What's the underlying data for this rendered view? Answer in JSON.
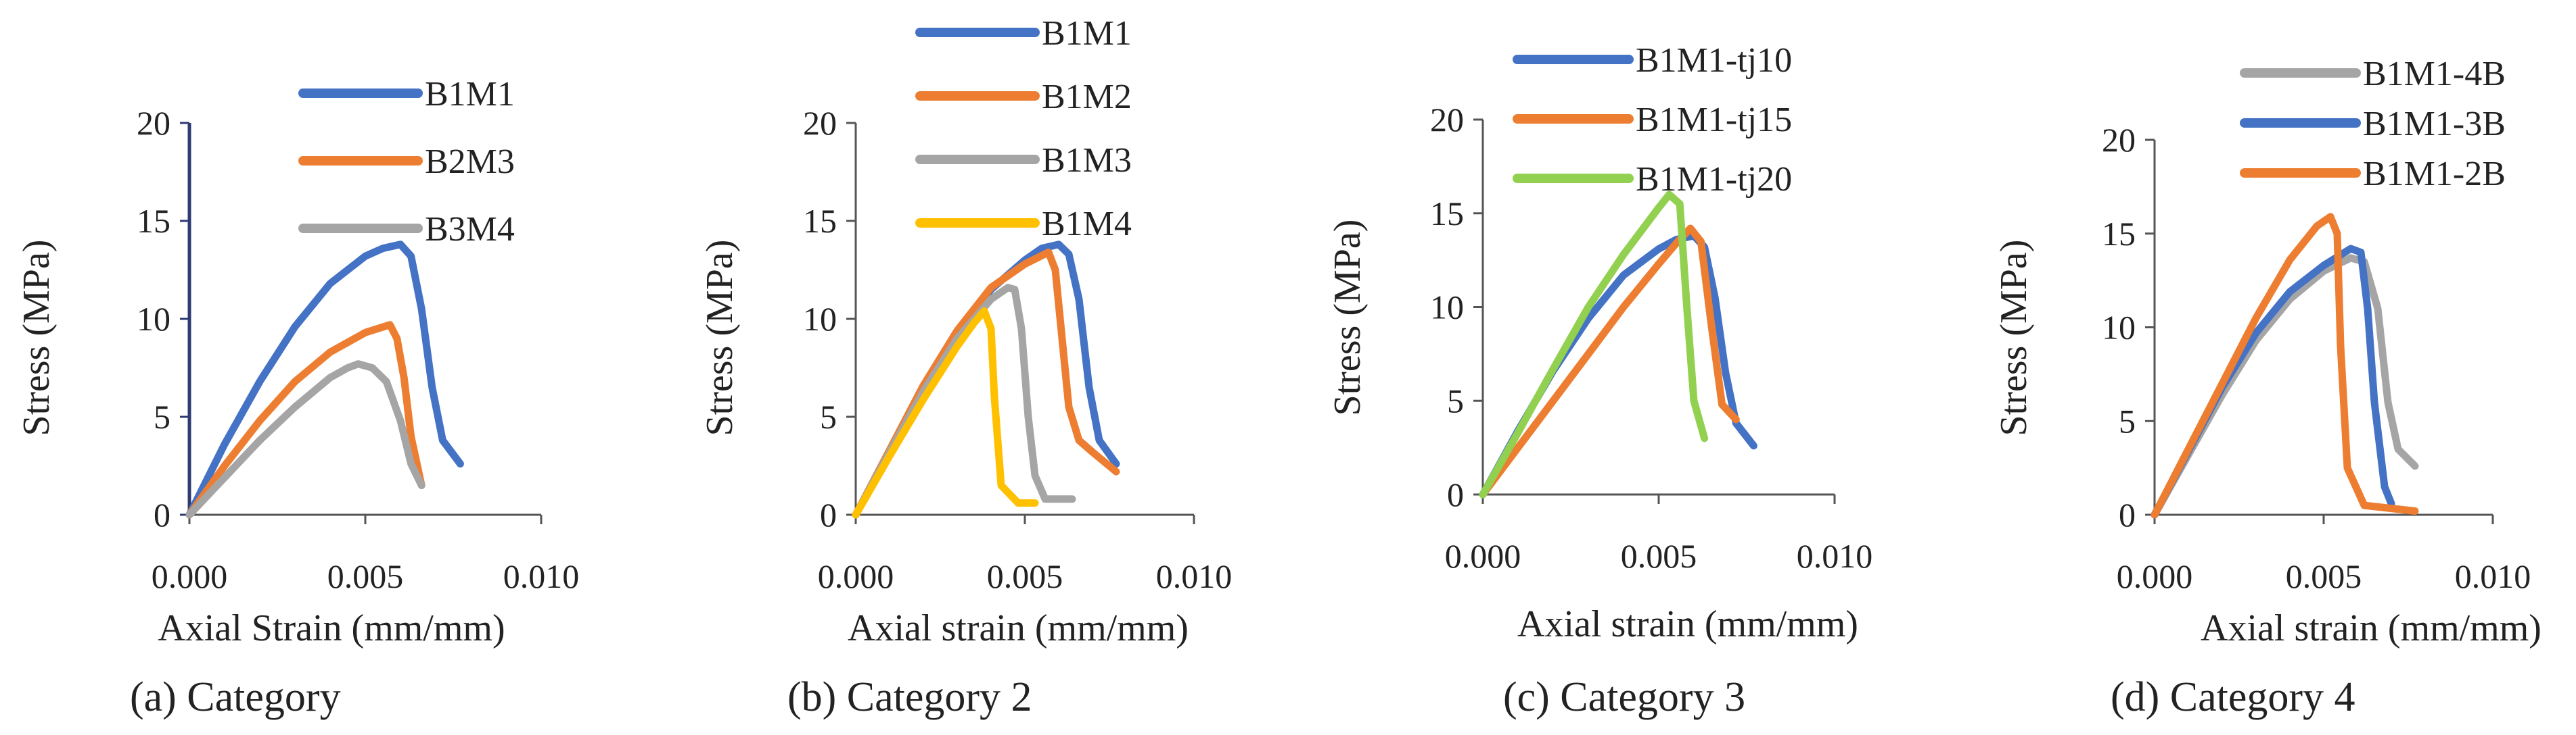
{
  "colors": {
    "blue": "#4472C4",
    "orange": "#ED7D31",
    "gray": "#A5A5A5",
    "yellow": "#FFC000",
    "green": "#92D050",
    "axis": "#2E3B73"
  },
  "chart_data": [
    {
      "type": "line",
      "caption": "(a) Category",
      "xlabel": "Axial Strain (mm/mm)",
      "ylabel": "Stress  (MPa)",
      "xlim": [
        0,
        0.01
      ],
      "ylim": [
        0,
        20
      ],
      "xticks": [
        0,
        0.005,
        0.01
      ],
      "xtick_labels": [
        "0.000",
        "0.005",
        "0.010"
      ],
      "yticks": [
        0,
        5,
        10,
        15,
        20
      ],
      "ytick_labels": [
        "0",
        "5",
        "10",
        "15",
        "20"
      ],
      "legend_position": "top-center",
      "series": [
        {
          "name": "B1M1",
          "color": "blue",
          "x": [
            0,
            0.001,
            0.002,
            0.003,
            0.004,
            0.005,
            0.0055,
            0.006,
            0.0063,
            0.0066,
            0.0069,
            0.0072,
            0.0077
          ],
          "y": [
            0,
            3.6,
            6.8,
            9.6,
            11.8,
            13.2,
            13.6,
            13.8,
            13.2,
            10.5,
            6.5,
            3.8,
            2.6
          ]
        },
        {
          "name": "B2M3",
          "color": "orange",
          "x": [
            0,
            0.001,
            0.002,
            0.003,
            0.004,
            0.005,
            0.0057,
            0.0059,
            0.0061,
            0.0063,
            0.0066
          ],
          "y": [
            0,
            2.5,
            4.8,
            6.8,
            8.3,
            9.3,
            9.7,
            9.0,
            7.0,
            4.0,
            1.5
          ]
        },
        {
          "name": "B3M4",
          "color": "gray",
          "x": [
            0,
            0.001,
            0.002,
            0.003,
            0.004,
            0.0045,
            0.0048,
            0.0052,
            0.0056,
            0.006,
            0.0063,
            0.0066
          ],
          "y": [
            0,
            1.9,
            3.8,
            5.5,
            7.0,
            7.5,
            7.7,
            7.5,
            6.8,
            4.8,
            2.6,
            1.5
          ]
        }
      ]
    },
    {
      "type": "line",
      "caption": "(b) Category 2",
      "xlabel": "Axial strain (mm/mm)",
      "ylabel": "Stress  (MPa)",
      "xlim": [
        0,
        0.01
      ],
      "ylim": [
        0,
        20
      ],
      "xticks": [
        0,
        0.005,
        0.01
      ],
      "xtick_labels": [
        "0.000",
        "0.005",
        "0.010"
      ],
      "yticks": [
        0,
        5,
        10,
        15,
        20
      ],
      "ytick_labels": [
        "0",
        "5",
        "10",
        "15",
        "20"
      ],
      "legend_position": "top-right",
      "series": [
        {
          "name": "B1M1",
          "color": "blue",
          "x": [
            0,
            0.001,
            0.002,
            0.003,
            0.004,
            0.005,
            0.0055,
            0.006,
            0.0063,
            0.0066,
            0.0069,
            0.0072,
            0.0077
          ],
          "y": [
            0,
            3.2,
            6.5,
            9.3,
            11.5,
            13.0,
            13.6,
            13.8,
            13.3,
            11.0,
            6.5,
            3.8,
            2.6
          ]
        },
        {
          "name": "B1M2",
          "color": "orange",
          "x": [
            0,
            0.001,
            0.002,
            0.003,
            0.004,
            0.005,
            0.0057,
            0.0059,
            0.0061,
            0.0063,
            0.0066,
            0.007,
            0.0077
          ],
          "y": [
            0,
            3.3,
            6.6,
            9.4,
            11.6,
            12.8,
            13.4,
            12.5,
            9.0,
            5.5,
            3.8,
            3.2,
            2.2
          ]
        },
        {
          "name": "B1M3",
          "color": "gray",
          "x": [
            0,
            0.001,
            0.002,
            0.003,
            0.004,
            0.0045,
            0.0047,
            0.0049,
            0.0051,
            0.0053,
            0.0056,
            0.0064
          ],
          "y": [
            0,
            3.2,
            6.3,
            9.0,
            11.0,
            11.6,
            11.5,
            9.5,
            5.0,
            2.0,
            0.8,
            0.8
          ]
        },
        {
          "name": "B1M4",
          "color": "yellow",
          "x": [
            0,
            0.001,
            0.002,
            0.003,
            0.0035,
            0.0038,
            0.004,
            0.0041,
            0.0043,
            0.0048,
            0.0053
          ],
          "y": [
            0,
            3.0,
            5.9,
            8.6,
            9.8,
            10.4,
            9.5,
            6.0,
            1.5,
            0.6,
            0.6
          ]
        }
      ]
    },
    {
      "type": "line",
      "caption": "(c) Category 3",
      "xlabel": "Axial strain (mm/mm)",
      "ylabel": "Stress  (MPa)",
      "xlim": [
        0,
        0.01
      ],
      "ylim": [
        0,
        20
      ],
      "xticks": [
        0,
        0.005,
        0.01
      ],
      "xtick_labels": [
        "0.000",
        "0.005",
        "0.010"
      ],
      "yticks": [
        0,
        5,
        10,
        15,
        20
      ],
      "ytick_labels": [
        "0",
        "5",
        "10",
        "15",
        "20"
      ],
      "legend_position": "top-right",
      "series": [
        {
          "name": "B1M1-tj10",
          "color": "blue",
          "x": [
            0,
            0.001,
            0.002,
            0.003,
            0.004,
            0.005,
            0.0055,
            0.006,
            0.0063,
            0.0066,
            0.0069,
            0.0072,
            0.0077
          ],
          "y": [
            0,
            3.4,
            6.6,
            9.4,
            11.7,
            13.1,
            13.6,
            13.8,
            13.2,
            10.5,
            6.5,
            3.8,
            2.6
          ]
        },
        {
          "name": "B1M1-tj15",
          "color": "orange",
          "x": [
            0,
            0.001,
            0.002,
            0.003,
            0.004,
            0.005,
            0.0055,
            0.0059,
            0.0062,
            0.0065,
            0.0068,
            0.0071,
            0.0072
          ],
          "y": [
            0,
            2.5,
            5.0,
            7.5,
            10.0,
            12.3,
            13.4,
            14.2,
            13.5,
            9.0,
            4.8,
            4.2,
            4.0
          ]
        },
        {
          "name": "B1M1-tj20",
          "color": "green",
          "x": [
            0,
            0.001,
            0.002,
            0.003,
            0.004,
            0.005,
            0.0053,
            0.0056,
            0.0058,
            0.006,
            0.0063
          ],
          "y": [
            0,
            3.3,
            6.7,
            10.0,
            12.8,
            15.3,
            16.0,
            15.5,
            10.0,
            5.0,
            3.0
          ]
        }
      ]
    },
    {
      "type": "line",
      "caption": "(d) Category 4",
      "xlabel": "Axial strain (mm/mm)",
      "ylabel": "Stress  (MPa)",
      "xlim": [
        0,
        0.01
      ],
      "ylim": [
        0,
        20
      ],
      "xticks": [
        0,
        0.005,
        0.01
      ],
      "xtick_labels": [
        "0.000",
        "0.005",
        "0.010"
      ],
      "yticks": [
        0,
        5,
        10,
        15,
        20
      ],
      "ytick_labels": [
        "0",
        "5",
        "10",
        "15",
        "20"
      ],
      "legend_position": "top-center",
      "series": [
        {
          "name": "B1M1-4B",
          "color": "gray",
          "x": [
            0,
            0.001,
            0.002,
            0.003,
            0.004,
            0.005,
            0.0058,
            0.0062,
            0.0066,
            0.0069,
            0.0072,
            0.0077
          ],
          "y": [
            0,
            3.2,
            6.4,
            9.3,
            11.5,
            13.0,
            13.7,
            13.5,
            11.0,
            6.0,
            3.5,
            2.6
          ]
        },
        {
          "name": "B1M1-3B",
          "color": "blue",
          "x": [
            0,
            0.001,
            0.002,
            0.003,
            0.004,
            0.005,
            0.0058,
            0.0061,
            0.0063,
            0.0065,
            0.0068,
            0.007
          ],
          "y": [
            0,
            3.4,
            6.8,
            9.7,
            11.9,
            13.3,
            14.2,
            14.0,
            11.0,
            6.0,
            1.5,
            0.6
          ]
        },
        {
          "name": "B1M1-2B",
          "color": "orange",
          "x": [
            0,
            0.001,
            0.002,
            0.003,
            0.004,
            0.0048,
            0.0052,
            0.0054,
            0.0055,
            0.0057,
            0.0062,
            0.0077
          ],
          "y": [
            0,
            3.5,
            7.0,
            10.5,
            13.6,
            15.4,
            15.9,
            15.0,
            9.0,
            2.5,
            0.5,
            0.2
          ]
        }
      ]
    }
  ]
}
